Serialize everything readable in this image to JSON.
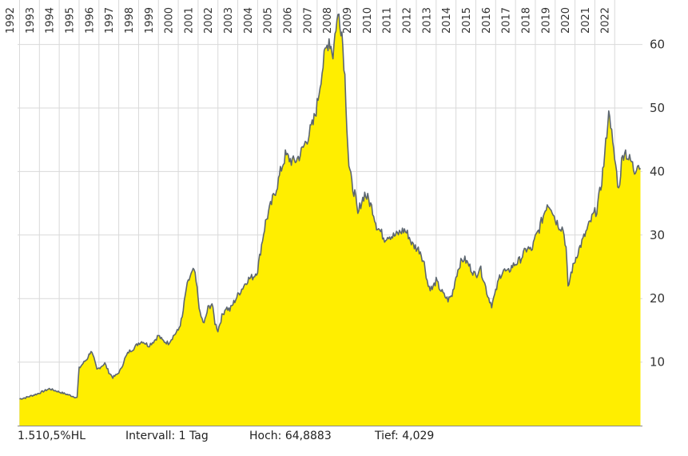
{
  "chart_data": {
    "type": "area",
    "x_tick_labels": [
      "1992",
      "1993",
      "1994",
      "1995",
      "1996",
      "1997",
      "1998",
      "1999",
      "2000",
      "2001",
      "2002",
      "2003",
      "2004",
      "2005",
      "2006",
      "2007",
      "2008",
      "2009",
      "2010",
      "2011",
      "2012",
      "2013",
      "2014",
      "2015",
      "2016",
      "2017",
      "2018",
      "2019",
      "2020",
      "2021",
      "2022"
    ],
    "y_ticks": [
      10,
      20,
      30,
      40,
      50,
      60
    ],
    "ylim": [
      0,
      67
    ],
    "xlim": [
      1991.9,
      2023.4
    ],
    "grid": true,
    "colors": {
      "fill": "#ffee00",
      "line": "#5c6670",
      "grid": "#d9d9d9",
      "axis": "#888888"
    },
    "series": [
      {
        "points": [
          [
            1992.0,
            4.2
          ],
          [
            1992.3,
            4.4
          ],
          [
            1992.6,
            4.7
          ],
          [
            1992.9,
            5.0
          ],
          [
            1993.2,
            5.4
          ],
          [
            1993.5,
            5.8
          ],
          [
            1993.8,
            5.5
          ],
          [
            1994.1,
            5.2
          ],
          [
            1994.4,
            4.9
          ],
          [
            1994.7,
            4.6
          ],
          [
            1994.9,
            4.4
          ],
          [
            1995.0,
            9.0
          ],
          [
            1995.2,
            9.8
          ],
          [
            1995.4,
            10.5
          ],
          [
            1995.6,
            11.8
          ],
          [
            1995.75,
            10.5
          ],
          [
            1995.9,
            8.8
          ],
          [
            1996.1,
            9.3
          ],
          [
            1996.3,
            9.8
          ],
          [
            1996.5,
            8.4
          ],
          [
            1996.7,
            7.6
          ],
          [
            1996.9,
            8.0
          ],
          [
            1997.1,
            8.8
          ],
          [
            1997.3,
            10.5
          ],
          [
            1997.5,
            11.6
          ],
          [
            1997.8,
            12.3
          ],
          [
            1998.0,
            13.0
          ],
          [
            1998.2,
            13.3
          ],
          [
            1998.5,
            12.6
          ],
          [
            1998.8,
            13.4
          ],
          [
            1999.0,
            14.2
          ],
          [
            1999.2,
            13.4
          ],
          [
            1999.5,
            13.0
          ],
          [
            1999.8,
            14.3
          ],
          [
            2000.0,
            15.0
          ],
          [
            2000.2,
            17.0
          ],
          [
            2000.4,
            21.5
          ],
          [
            2000.6,
            23.5
          ],
          [
            2000.8,
            24.5
          ],
          [
            2000.95,
            21.5
          ],
          [
            2001.1,
            17.5
          ],
          [
            2001.3,
            16.0
          ],
          [
            2001.5,
            18.5
          ],
          [
            2001.7,
            19.2
          ],
          [
            2001.85,
            16.2
          ],
          [
            2002.0,
            15.0
          ],
          [
            2002.2,
            17.2
          ],
          [
            2002.4,
            18.6
          ],
          [
            2002.6,
            18.2
          ],
          [
            2002.8,
            19.4
          ],
          [
            2003.0,
            20.5
          ],
          [
            2003.2,
            21.5
          ],
          [
            2003.5,
            23.0
          ],
          [
            2003.8,
            23.5
          ],
          [
            2004.0,
            24.5
          ],
          [
            2004.2,
            28.5
          ],
          [
            2004.4,
            32.0
          ],
          [
            2004.6,
            34.0
          ],
          [
            2004.8,
            36.0
          ],
          [
            2005.0,
            38.0
          ],
          [
            2005.2,
            40.5
          ],
          [
            2005.4,
            42.5
          ],
          [
            2005.6,
            42.0
          ],
          [
            2005.8,
            41.5
          ],
          [
            2006.0,
            42.0
          ],
          [
            2006.2,
            43.0
          ],
          [
            2006.4,
            44.5
          ],
          [
            2006.6,
            46.0
          ],
          [
            2006.8,
            47.5
          ],
          [
            2007.0,
            50.5
          ],
          [
            2007.2,
            55.0
          ],
          [
            2007.4,
            58.5
          ],
          [
            2007.6,
            61.0
          ],
          [
            2007.8,
            58.5
          ],
          [
            2007.95,
            63.0
          ],
          [
            2008.1,
            64.8
          ],
          [
            2008.25,
            62.0
          ],
          [
            2008.4,
            55.0
          ],
          [
            2008.5,
            47.5
          ],
          [
            2008.6,
            41.0
          ],
          [
            2008.75,
            38.0
          ],
          [
            2008.9,
            36.5
          ],
          [
            2009.05,
            33.0
          ],
          [
            2009.2,
            35.0
          ],
          [
            2009.4,
            36.5
          ],
          [
            2009.6,
            35.5
          ],
          [
            2009.8,
            34.0
          ],
          [
            2010.0,
            31.5
          ],
          [
            2010.2,
            30.5
          ],
          [
            2010.4,
            29.5
          ],
          [
            2010.6,
            30.0
          ],
          [
            2010.8,
            29.8
          ],
          [
            2011.0,
            30.0
          ],
          [
            2011.2,
            30.5
          ],
          [
            2011.4,
            30.8
          ],
          [
            2011.6,
            30.0
          ],
          [
            2011.8,
            28.5
          ],
          [
            2012.0,
            28.0
          ],
          [
            2012.2,
            27.5
          ],
          [
            2012.4,
            25.5
          ],
          [
            2012.6,
            22.0
          ],
          [
            2012.8,
            21.5
          ],
          [
            2013.0,
            22.8
          ],
          [
            2013.2,
            21.5
          ],
          [
            2013.4,
            20.5
          ],
          [
            2013.6,
            19.8
          ],
          [
            2013.8,
            20.5
          ],
          [
            2014.0,
            23.5
          ],
          [
            2014.2,
            25.5
          ],
          [
            2014.4,
            26.3
          ],
          [
            2014.6,
            25.5
          ],
          [
            2014.8,
            24.5
          ],
          [
            2015.0,
            23.5
          ],
          [
            2015.2,
            25.0
          ],
          [
            2015.4,
            23.0
          ],
          [
            2015.6,
            20.5
          ],
          [
            2015.8,
            19.0
          ],
          [
            2016.0,
            21.0
          ],
          [
            2016.2,
            23.5
          ],
          [
            2016.4,
            24.5
          ],
          [
            2016.6,
            24.0
          ],
          [
            2016.8,
            25.0
          ],
          [
            2017.0,
            25.5
          ],
          [
            2017.2,
            26.0
          ],
          [
            2017.4,
            27.0
          ],
          [
            2017.6,
            28.0
          ],
          [
            2017.8,
            27.5
          ],
          [
            2018.0,
            29.5
          ],
          [
            2018.2,
            31.0
          ],
          [
            2018.4,
            33.0
          ],
          [
            2018.6,
            35.0
          ],
          [
            2018.8,
            34.5
          ],
          [
            2019.0,
            32.5
          ],
          [
            2019.2,
            31.5
          ],
          [
            2019.4,
            31.0
          ],
          [
            2019.55,
            28.0
          ],
          [
            2019.65,
            21.5
          ],
          [
            2019.8,
            24.0
          ],
          [
            2019.95,
            25.5
          ],
          [
            2020.1,
            27.0
          ],
          [
            2020.3,
            28.5
          ],
          [
            2020.5,
            30.0
          ],
          [
            2020.7,
            31.5
          ],
          [
            2020.9,
            33.0
          ],
          [
            2021.1,
            34.0
          ],
          [
            2021.3,
            37.5
          ],
          [
            2021.5,
            42.5
          ],
          [
            2021.65,
            48.0
          ],
          [
            2021.75,
            49.6
          ],
          [
            2021.9,
            44.0
          ],
          [
            2022.05,
            41.0
          ],
          [
            2022.2,
            37.0
          ],
          [
            2022.35,
            41.5
          ],
          [
            2022.5,
            43.5
          ],
          [
            2022.7,
            42.0
          ],
          [
            2022.85,
            41.5
          ],
          [
            2023.0,
            40.0
          ],
          [
            2023.15,
            41.5
          ],
          [
            2023.3,
            40.5
          ]
        ]
      }
    ]
  },
  "footer": {
    "symbol": "1.510,5%HL",
    "interval": "Intervall: 1 Tag",
    "high": "Hoch: 64,8883",
    "low": "Tief:  4,029"
  }
}
